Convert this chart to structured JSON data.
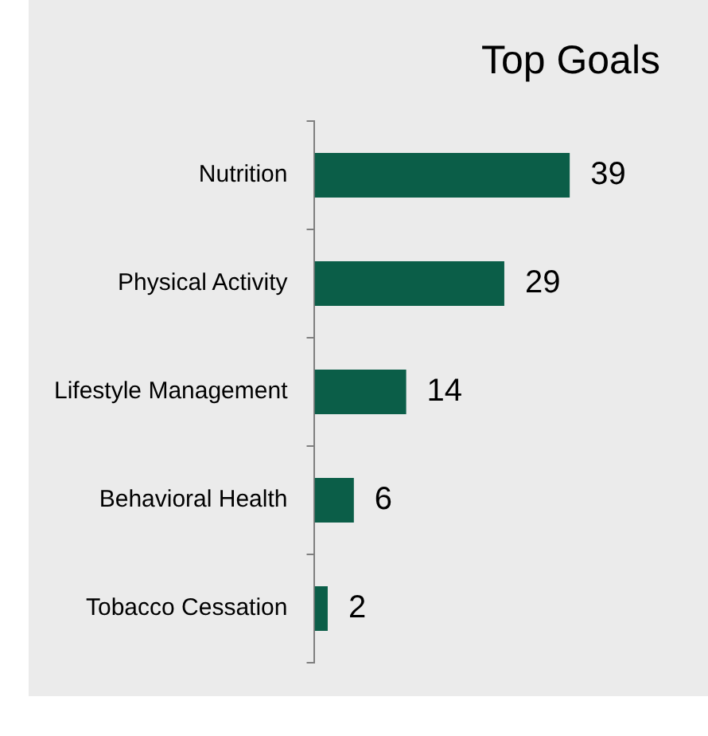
{
  "chart_data": {
    "type": "bar",
    "orientation": "horizontal",
    "title": "Top Goals",
    "categories": [
      "Nutrition",
      "Physical Activity",
      "Lifestyle Management",
      "Behavioral Health",
      "Tobacco Cessation"
    ],
    "values": [
      39,
      29,
      14,
      6,
      2
    ],
    "color": "#0b5e48",
    "data_labels": true,
    "legend": false
  }
}
